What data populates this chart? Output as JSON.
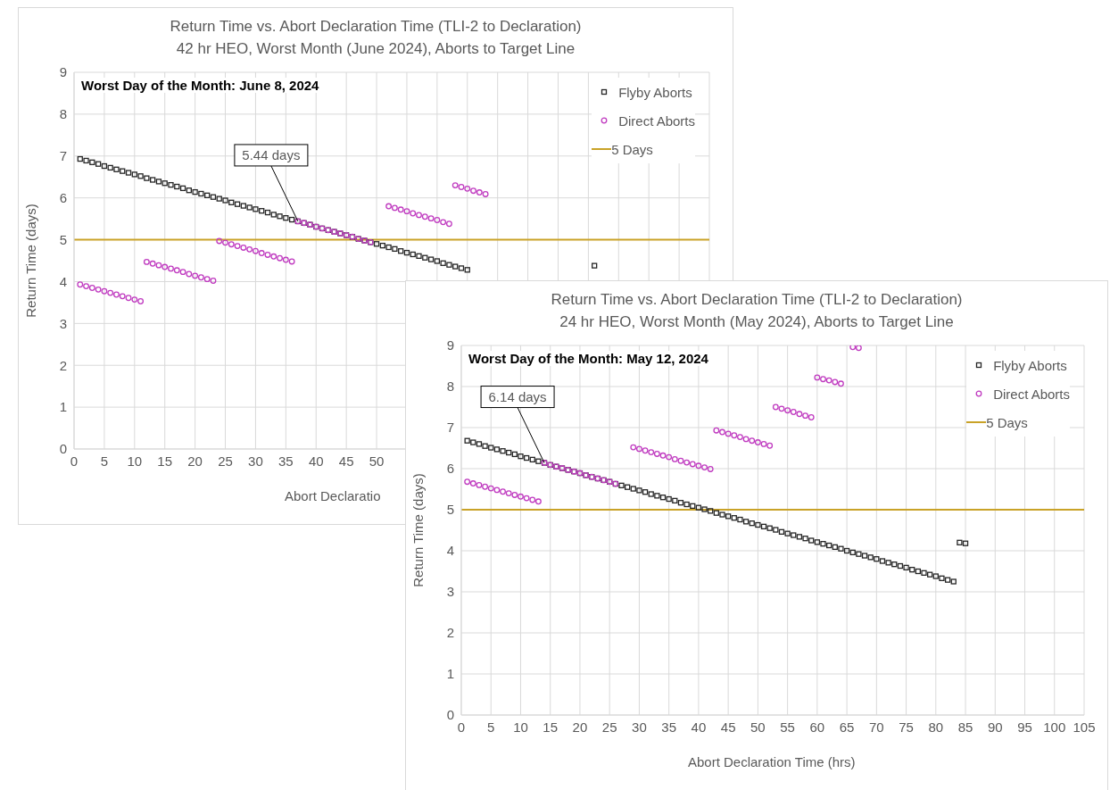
{
  "chart_data": [
    {
      "type": "scatter",
      "title": "Return Time vs. Abort Declaration Time (TLI-2 to Declaration)",
      "subtitle": "42 hr HEO, Worst Month (June 2024), Aborts to Target Line",
      "xlabel": "Abort Declaratio",
      "ylabel": "Return Time (days)",
      "xlim": [
        0,
        105
      ],
      "xticks": [
        0,
        5,
        10,
        15,
        20,
        25,
        30,
        35,
        40,
        45,
        50,
        {
          "value": 55,
          "label": null
        },
        {
          "value": 60,
          "label": null
        },
        {
          "value": 65,
          "label": null
        },
        {
          "value": 70,
          "label": null
        },
        {
          "value": 75,
          "label": null
        },
        {
          "value": 80,
          "label": null
        },
        {
          "value": 85,
          "label": null
        },
        {
          "value": 90,
          "label": null
        },
        {
          "value": 95,
          "label": null
        },
        {
          "value": 100,
          "label": null
        },
        {
          "value": 105,
          "label": null
        }
      ],
      "ylim": [
        0,
        9
      ],
      "yticks": [
        0,
        1,
        2,
        3,
        4,
        5,
        6,
        7,
        8,
        9
      ],
      "grid": true,
      "legend": "top right",
      "series": [
        {
          "name": "Flyby Aborts",
          "color": "#262626",
          "marker": "square",
          "x": [
            1,
            2,
            3,
            4,
            5,
            6,
            7,
            8,
            9,
            10,
            11,
            12,
            13,
            14,
            15,
            16,
            17,
            18,
            19,
            20,
            21,
            22,
            23,
            24,
            25,
            26,
            27,
            28,
            29,
            30,
            31,
            32,
            33,
            34,
            35,
            36,
            37,
            38,
            39,
            40,
            41,
            42,
            43,
            44,
            45,
            46,
            47,
            48,
            49,
            50,
            51,
            52,
            53,
            54,
            55,
            56,
            57,
            58,
            59,
            60,
            61,
            62,
            63,
            64,
            65,
            86
          ],
          "values": [
            6.93,
            6.89,
            6.85,
            6.81,
            6.76,
            6.72,
            6.68,
            6.64,
            6.6,
            6.56,
            6.52,
            6.47,
            6.43,
            6.39,
            6.35,
            6.31,
            6.27,
            6.23,
            6.18,
            6.14,
            6.1,
            6.06,
            6.02,
            5.98,
            5.94,
            5.89,
            5.85,
            5.81,
            5.77,
            5.73,
            5.69,
            5.65,
            5.6,
            5.56,
            5.52,
            5.48,
            5.44,
            5.4,
            5.36,
            5.31,
            5.27,
            5.23,
            5.19,
            5.15,
            5.11,
            5.07,
            5.02,
            4.98,
            4.94,
            4.9,
            4.86,
            4.82,
            4.78,
            4.73,
            4.69,
            4.65,
            4.61,
            4.57,
            4.53,
            4.49,
            4.44,
            4.4,
            4.36,
            4.32,
            4.28,
            4.38
          ]
        },
        {
          "name": "Direct Aborts",
          "color": "#c03cc0",
          "marker": "circle",
          "x": [
            1,
            2,
            3,
            4,
            5,
            6,
            7,
            8,
            9,
            10,
            11,
            12,
            13,
            14,
            15,
            16,
            17,
            18,
            19,
            20,
            21,
            22,
            23,
            24,
            25,
            26,
            27,
            28,
            29,
            30,
            31,
            32,
            33,
            34,
            35,
            36,
            37,
            38,
            39,
            40,
            41,
            42,
            43,
            44,
            45,
            46,
            47,
            48,
            49,
            52,
            53,
            54,
            55,
            56,
            57,
            58,
            59,
            60,
            61,
            62,
            63,
            64,
            65,
            66,
            67,
            68
          ],
          "values": [
            3.93,
            3.89,
            3.85,
            3.81,
            3.77,
            3.73,
            3.69,
            3.65,
            3.61,
            3.57,
            3.53,
            4.47,
            4.43,
            4.39,
            4.35,
            4.31,
            4.27,
            4.23,
            4.18,
            4.14,
            4.1,
            4.06,
            4.02,
            4.97,
            4.93,
            4.89,
            4.85,
            4.81,
            4.77,
            4.73,
            4.68,
            4.64,
            4.6,
            4.56,
            4.52,
            4.48,
            5.44,
            5.4,
            5.36,
            5.31,
            5.27,
            5.23,
            5.19,
            5.15,
            5.11,
            5.07,
            5.02,
            4.98,
            4.94,
            5.8,
            5.76,
            5.72,
            5.68,
            5.63,
            5.59,
            5.55,
            5.51,
            5.47,
            5.42,
            5.38,
            6.3,
            6.26,
            6.22,
            6.17,
            6.13,
            6.09
          ]
        }
      ],
      "ref_lines": [
        {
          "axis": "y",
          "value": 5,
          "label": "5 Days",
          "color": "#c9a227"
        }
      ],
      "annotations": [
        "Worst Day of the Month: June 8, 2024",
        {
          "text": "5.44 days",
          "x": 37,
          "y": 5.44
        }
      ]
    },
    {
      "type": "scatter",
      "title": "Return Time vs. Abort Declaration Time (TLI-2 to Declaration)",
      "subtitle": "24 hr HEO, Worst Month (May 2024), Aborts to Target Line",
      "xlabel": "Abort Declaration Time (hrs)",
      "ylabel": "Return Time (days)",
      "xlim": [
        0,
        105
      ],
      "xticks": [
        0,
        5,
        10,
        15,
        20,
        25,
        30,
        35,
        40,
        45,
        50,
        55,
        60,
        65,
        70,
        75,
        80,
        85,
        90,
        95,
        100,
        105
      ],
      "ylim": [
        0,
        9
      ],
      "yticks": [
        0,
        1,
        2,
        3,
        4,
        5,
        6,
        7,
        8,
        9
      ],
      "grid": true,
      "legend": "top right",
      "series": [
        {
          "name": "Flyby Aborts",
          "color": "#262626",
          "marker": "square",
          "x": [
            1,
            2,
            3,
            4,
            5,
            6,
            7,
            8,
            9,
            10,
            11,
            12,
            13,
            14,
            15,
            16,
            17,
            18,
            19,
            20,
            21,
            22,
            23,
            24,
            25,
            26,
            27,
            28,
            29,
            30,
            31,
            32,
            33,
            34,
            35,
            36,
            37,
            38,
            39,
            40,
            41,
            42,
            43,
            44,
            45,
            46,
            47,
            48,
            49,
            50,
            51,
            52,
            53,
            54,
            55,
            56,
            57,
            58,
            59,
            60,
            61,
            62,
            63,
            64,
            65,
            66,
            67,
            68,
            69,
            70,
            71,
            72,
            73,
            74,
            75,
            76,
            77,
            78,
            79,
            80,
            81,
            82,
            83,
            84,
            85
          ],
          "values": [
            6.68,
            6.64,
            6.6,
            6.55,
            6.51,
            6.47,
            6.43,
            6.39,
            6.35,
            6.3,
            6.26,
            6.22,
            6.18,
            6.14,
            6.09,
            6.05,
            6.01,
            5.97,
            5.93,
            5.89,
            5.84,
            5.8,
            5.76,
            5.72,
            5.68,
            5.63,
            5.59,
            5.55,
            5.51,
            5.47,
            5.43,
            5.38,
            5.34,
            5.3,
            5.26,
            5.22,
            5.17,
            5.13,
            5.09,
            5.05,
            5.01,
            4.97,
            4.92,
            4.88,
            4.84,
            4.8,
            4.76,
            4.71,
            4.67,
            4.63,
            4.59,
            4.55,
            4.51,
            4.46,
            4.42,
            4.38,
            4.34,
            4.3,
            4.25,
            4.21,
            4.17,
            4.13,
            4.09,
            4.05,
            4.0,
            3.96,
            3.92,
            3.88,
            3.84,
            3.8,
            3.75,
            3.71,
            3.67,
            3.63,
            3.59,
            3.54,
            3.5,
            3.46,
            3.42,
            3.38,
            3.33,
            3.29,
            3.25,
            4.2,
            4.18
          ]
        },
        {
          "name": "Direct Aborts",
          "color": "#c03cc0",
          "marker": "circle",
          "x": [
            1,
            2,
            3,
            4,
            5,
            6,
            7,
            8,
            9,
            10,
            11,
            12,
            13,
            14,
            15,
            16,
            17,
            18,
            19,
            20,
            21,
            22,
            23,
            24,
            25,
            26,
            29,
            30,
            31,
            32,
            33,
            34,
            35,
            36,
            37,
            38,
            39,
            40,
            41,
            42,
            43,
            44,
            45,
            46,
            47,
            48,
            49,
            50,
            51,
            52,
            53,
            54,
            55,
            56,
            57,
            58,
            59,
            60,
            61,
            62,
            63,
            64,
            66,
            67
          ],
          "values": [
            5.68,
            5.64,
            5.6,
            5.56,
            5.52,
            5.48,
            5.44,
            5.4,
            5.36,
            5.32,
            5.28,
            5.24,
            5.2,
            6.14,
            6.09,
            6.05,
            6.01,
            5.97,
            5.93,
            5.89,
            5.84,
            5.8,
            5.76,
            5.72,
            5.68,
            5.63,
            6.52,
            6.48,
            6.44,
            6.4,
            6.36,
            6.32,
            6.28,
            6.23,
            6.19,
            6.15,
            6.11,
            6.07,
            6.03,
            5.99,
            6.93,
            6.89,
            6.85,
            6.81,
            6.77,
            6.72,
            6.68,
            6.64,
            6.6,
            6.56,
            7.5,
            7.46,
            7.42,
            7.38,
            7.33,
            7.29,
            7.25,
            8.22,
            8.18,
            8.15,
            8.11,
            8.07,
            8.96,
            8.94
          ]
        }
      ],
      "ref_lines": [
        {
          "axis": "y",
          "value": 5,
          "label": "5 Days",
          "color": "#c9a227"
        }
      ],
      "annotations": [
        "Worst Day of the Month: May 12, 2024",
        {
          "text": "6.14 days",
          "x": 14,
          "y": 6.14
        }
      ]
    }
  ]
}
